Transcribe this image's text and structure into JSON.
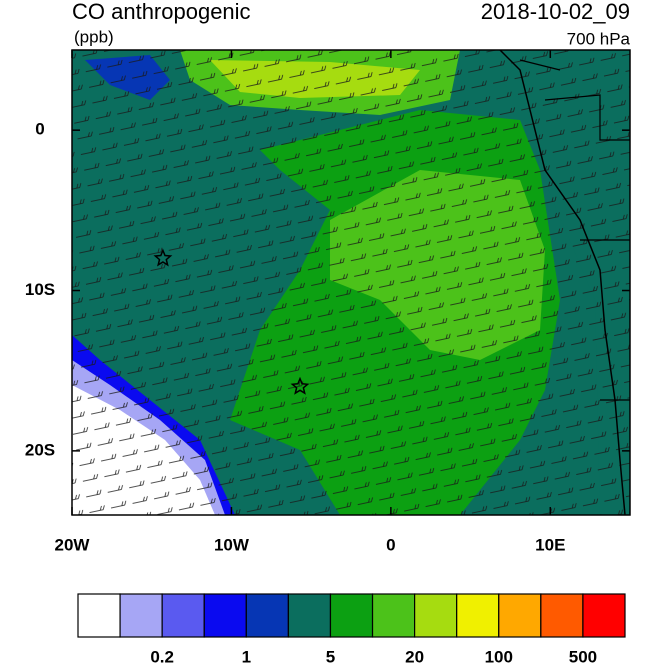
{
  "map": {
    "title": "CO anthropogenic",
    "units": "(ppb)",
    "date": "2018-10-02_09",
    "level": "700 hPa",
    "xlim": [
      -20,
      15
    ],
    "ylim": [
      -24,
      5
    ],
    "xticks": [
      {
        "value": -20,
        "label": "20W"
      },
      {
        "value": -10,
        "label": "10W"
      },
      0,
      {
        "value": 10,
        "label": "10E"
      }
    ],
    "yticks": [
      0,
      {
        "value": -10,
        "label": "10S"
      },
      {
        "value": -20,
        "label": "20S"
      }
    ],
    "markers": [
      {
        "lon": -14.3,
        "lat": -8
      },
      {
        "lon": -5.7,
        "lat": -16
      }
    ],
    "colorbar": {
      "colors": [
        "#ffffff",
        "#a6a6f5",
        "#5a5af0",
        "#0a0af0",
        "#0636b4",
        "#0b6e5e",
        "#0ca012",
        "#4cc21a",
        "#a6dc10",
        "#f0f000",
        "#ffa800",
        "#ff5a00",
        "#ff0000"
      ],
      "levels": [
        0.2,
        1,
        5,
        20,
        100,
        500
      ]
    }
  }
}
